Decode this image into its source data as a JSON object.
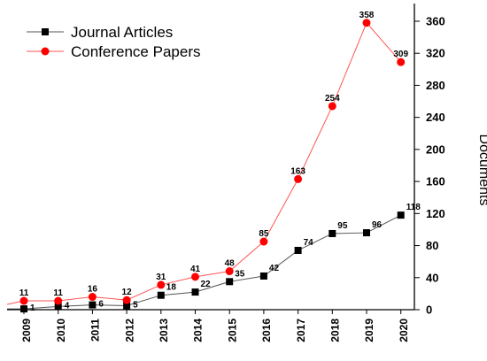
{
  "chart_data": {
    "type": "line",
    "title": "",
    "xlabel": "",
    "ylabel": "Documents",
    "ylim": [
      0,
      380
    ],
    "yticks": [
      0,
      40,
      80,
      120,
      160,
      200,
      240,
      280,
      320,
      360
    ],
    "categories": [
      "2009",
      "2010",
      "2011",
      "2012",
      "2013",
      "2014",
      "2015",
      "2016",
      "2017",
      "2018",
      "2019",
      "2020"
    ],
    "grid": false,
    "legend_position": "top-left",
    "series": [
      {
        "name": "Journal Articles",
        "marker": "square",
        "color": "#000000",
        "line_color": "#555555",
        "values": [
          1,
          4,
          6,
          5,
          18,
          22,
          35,
          42,
          74,
          95,
          96,
          118
        ],
        "labels": [
          "1",
          "4",
          "6",
          "5",
          "18",
          "22",
          "35",
          "42",
          "74",
          "95",
          "96",
          "118"
        ]
      },
      {
        "name": "Conference Papers",
        "marker": "circle",
        "color": "#ff0000",
        "line_color": "#ff5555",
        "values": [
          11,
          11,
          16,
          12,
          31,
          41,
          48,
          85,
          163,
          254,
          358,
          309
        ],
        "labels": [
          "11",
          "11",
          "16",
          "12",
          "31",
          "41",
          "48",
          "85",
          "163",
          "254",
          "358",
          "309"
        ]
      }
    ]
  }
}
